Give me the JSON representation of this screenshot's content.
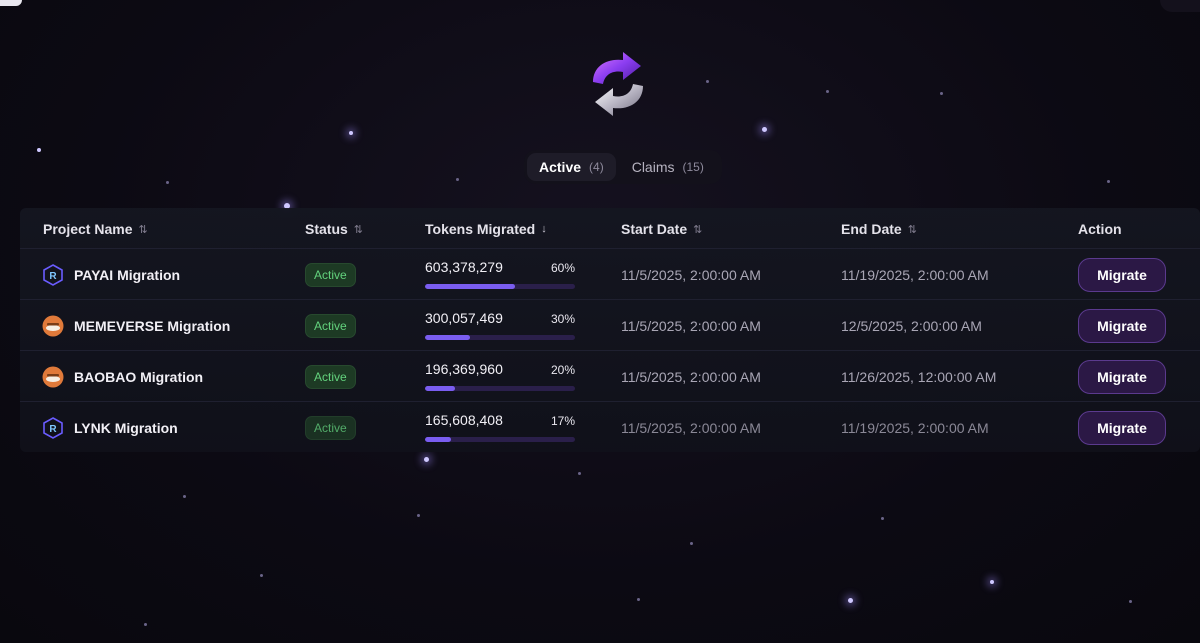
{
  "tabs": [
    {
      "label": "Active",
      "count": "(4)",
      "selected": true
    },
    {
      "label": "Claims",
      "count": "(15)",
      "selected": false
    }
  ],
  "table": {
    "headers": {
      "project": "Project Name",
      "status": "Status",
      "tokens": "Tokens Migrated",
      "start": "Start Date",
      "end": "End Date",
      "action": "Action"
    },
    "rows": [
      {
        "project": "PAYAI Migration",
        "icon": "raydium-icon",
        "status": "Active",
        "amount": "603,378,279",
        "percent": "60%",
        "progress": 0.6,
        "start": "11/5/2025, 2:00:00 AM",
        "end": "11/19/2025, 2:00:00 AM",
        "action": "Migrate"
      },
      {
        "project": "MEMEVERSE Migration",
        "icon": "orange-avatar-icon",
        "status": "Active",
        "amount": "300,057,469",
        "percent": "30%",
        "progress": 0.3,
        "start": "11/5/2025, 2:00:00 AM",
        "end": "12/5/2025, 2:00:00 AM",
        "action": "Migrate"
      },
      {
        "project": "BAOBAO Migration",
        "icon": "orange-avatar-icon",
        "status": "Active",
        "amount": "196,369,960",
        "percent": "20%",
        "progress": 0.2,
        "start": "11/5/2025, 2:00:00 AM",
        "end": "11/26/2025, 12:00:00 AM",
        "action": "Migrate"
      },
      {
        "project": "LYNK Migration",
        "icon": "raydium-icon",
        "status": "Active",
        "amount": "165,608,408",
        "percent": "17%",
        "progress": 0.17,
        "start": "11/5/2025, 2:00:00 AM",
        "end": "11/19/2025, 2:00:00 AM",
        "action": "Migrate"
      }
    ]
  },
  "colors": {
    "accent": "#7a5df0",
    "status_active": "#63d27d",
    "background": "#0c0a13"
  }
}
